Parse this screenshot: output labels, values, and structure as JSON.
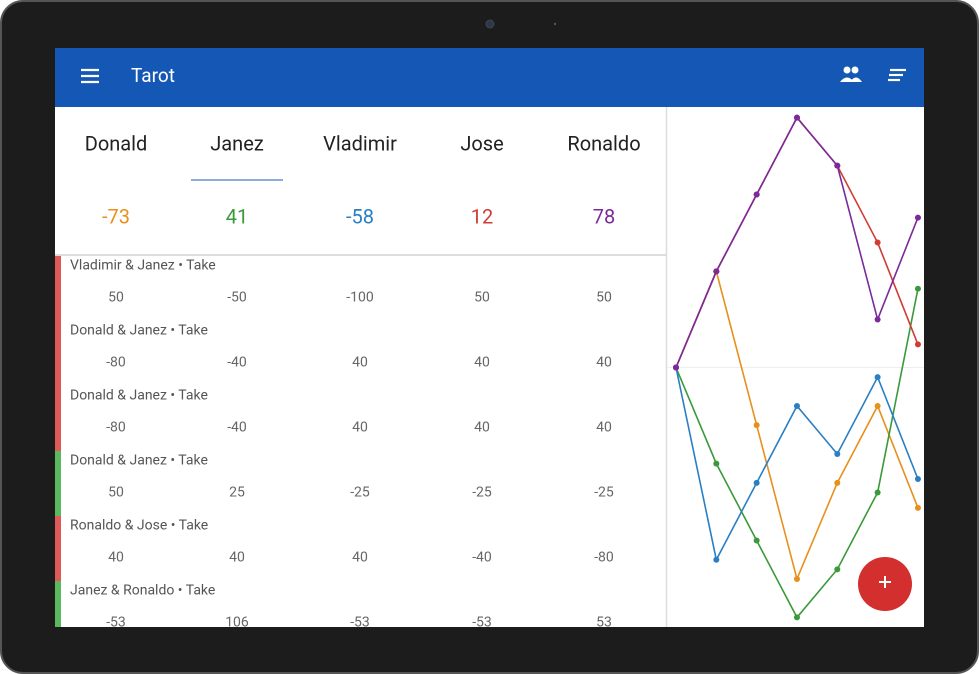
{
  "app_bar": {
    "title": "Tarot"
  },
  "selected_player": 1,
  "players": [
    {
      "name": "Donald",
      "total": -73
    },
    {
      "name": "Janez",
      "total": 41
    },
    {
      "name": "Vladimir",
      "total": -58
    },
    {
      "name": "Jose",
      "total": 12
    },
    {
      "name": "Ronaldo",
      "total": 78
    }
  ],
  "rounds": [
    {
      "label": "Vladimir & Janez • Take",
      "color": "#e05a5a",
      "scores": [
        50,
        -50,
        -100,
        50,
        50
      ]
    },
    {
      "label": "Donald & Janez • Take",
      "color": "#e05a5a",
      "scores": [
        -80,
        -40,
        40,
        40,
        40
      ]
    },
    {
      "label": "Donald & Janez • Take",
      "color": "#e05a5a",
      "scores": [
        -80,
        -40,
        40,
        40,
        40
      ]
    },
    {
      "label": "Donald & Janez • Take",
      "color": "#5cb85c",
      "scores": [
        50,
        25,
        -25,
        -25,
        -25
      ]
    },
    {
      "label": "Ronaldo & Jose • Take",
      "color": "#e05a5a",
      "scores": [
        40,
        40,
        40,
        -40,
        -80
      ]
    },
    {
      "label": "Janez & Ronaldo • Take",
      "color": "#5cb85c",
      "scores": [
        -53,
        106,
        -53,
        -53,
        53
      ]
    }
  ],
  "chart_data": {
    "type": "line",
    "x": [
      0,
      1,
      2,
      3,
      4,
      5,
      6
    ],
    "xlim": [
      0,
      6.15
    ],
    "ylim": [
      -135,
      135
    ],
    "series": [
      {
        "color": "#e8901c",
        "values": [
          0,
          50,
          -30,
          -110,
          -60,
          -20,
          -73
        ]
      },
      {
        "color": "#3a9a3a",
        "values": [
          0,
          -50,
          -90,
          -130,
          -105,
          -65,
          41
        ]
      },
      {
        "color": "#2a7fc4",
        "values": [
          0,
          -100,
          -60,
          -20,
          -45,
          -5,
          -58
        ]
      },
      {
        "color": "#d23b35",
        "values": [
          0,
          50,
          90,
          130,
          105,
          65,
          12
        ]
      },
      {
        "color": "#7b2a9b",
        "values": [
          0,
          50,
          90,
          130,
          105,
          25,
          78
        ]
      }
    ]
  }
}
